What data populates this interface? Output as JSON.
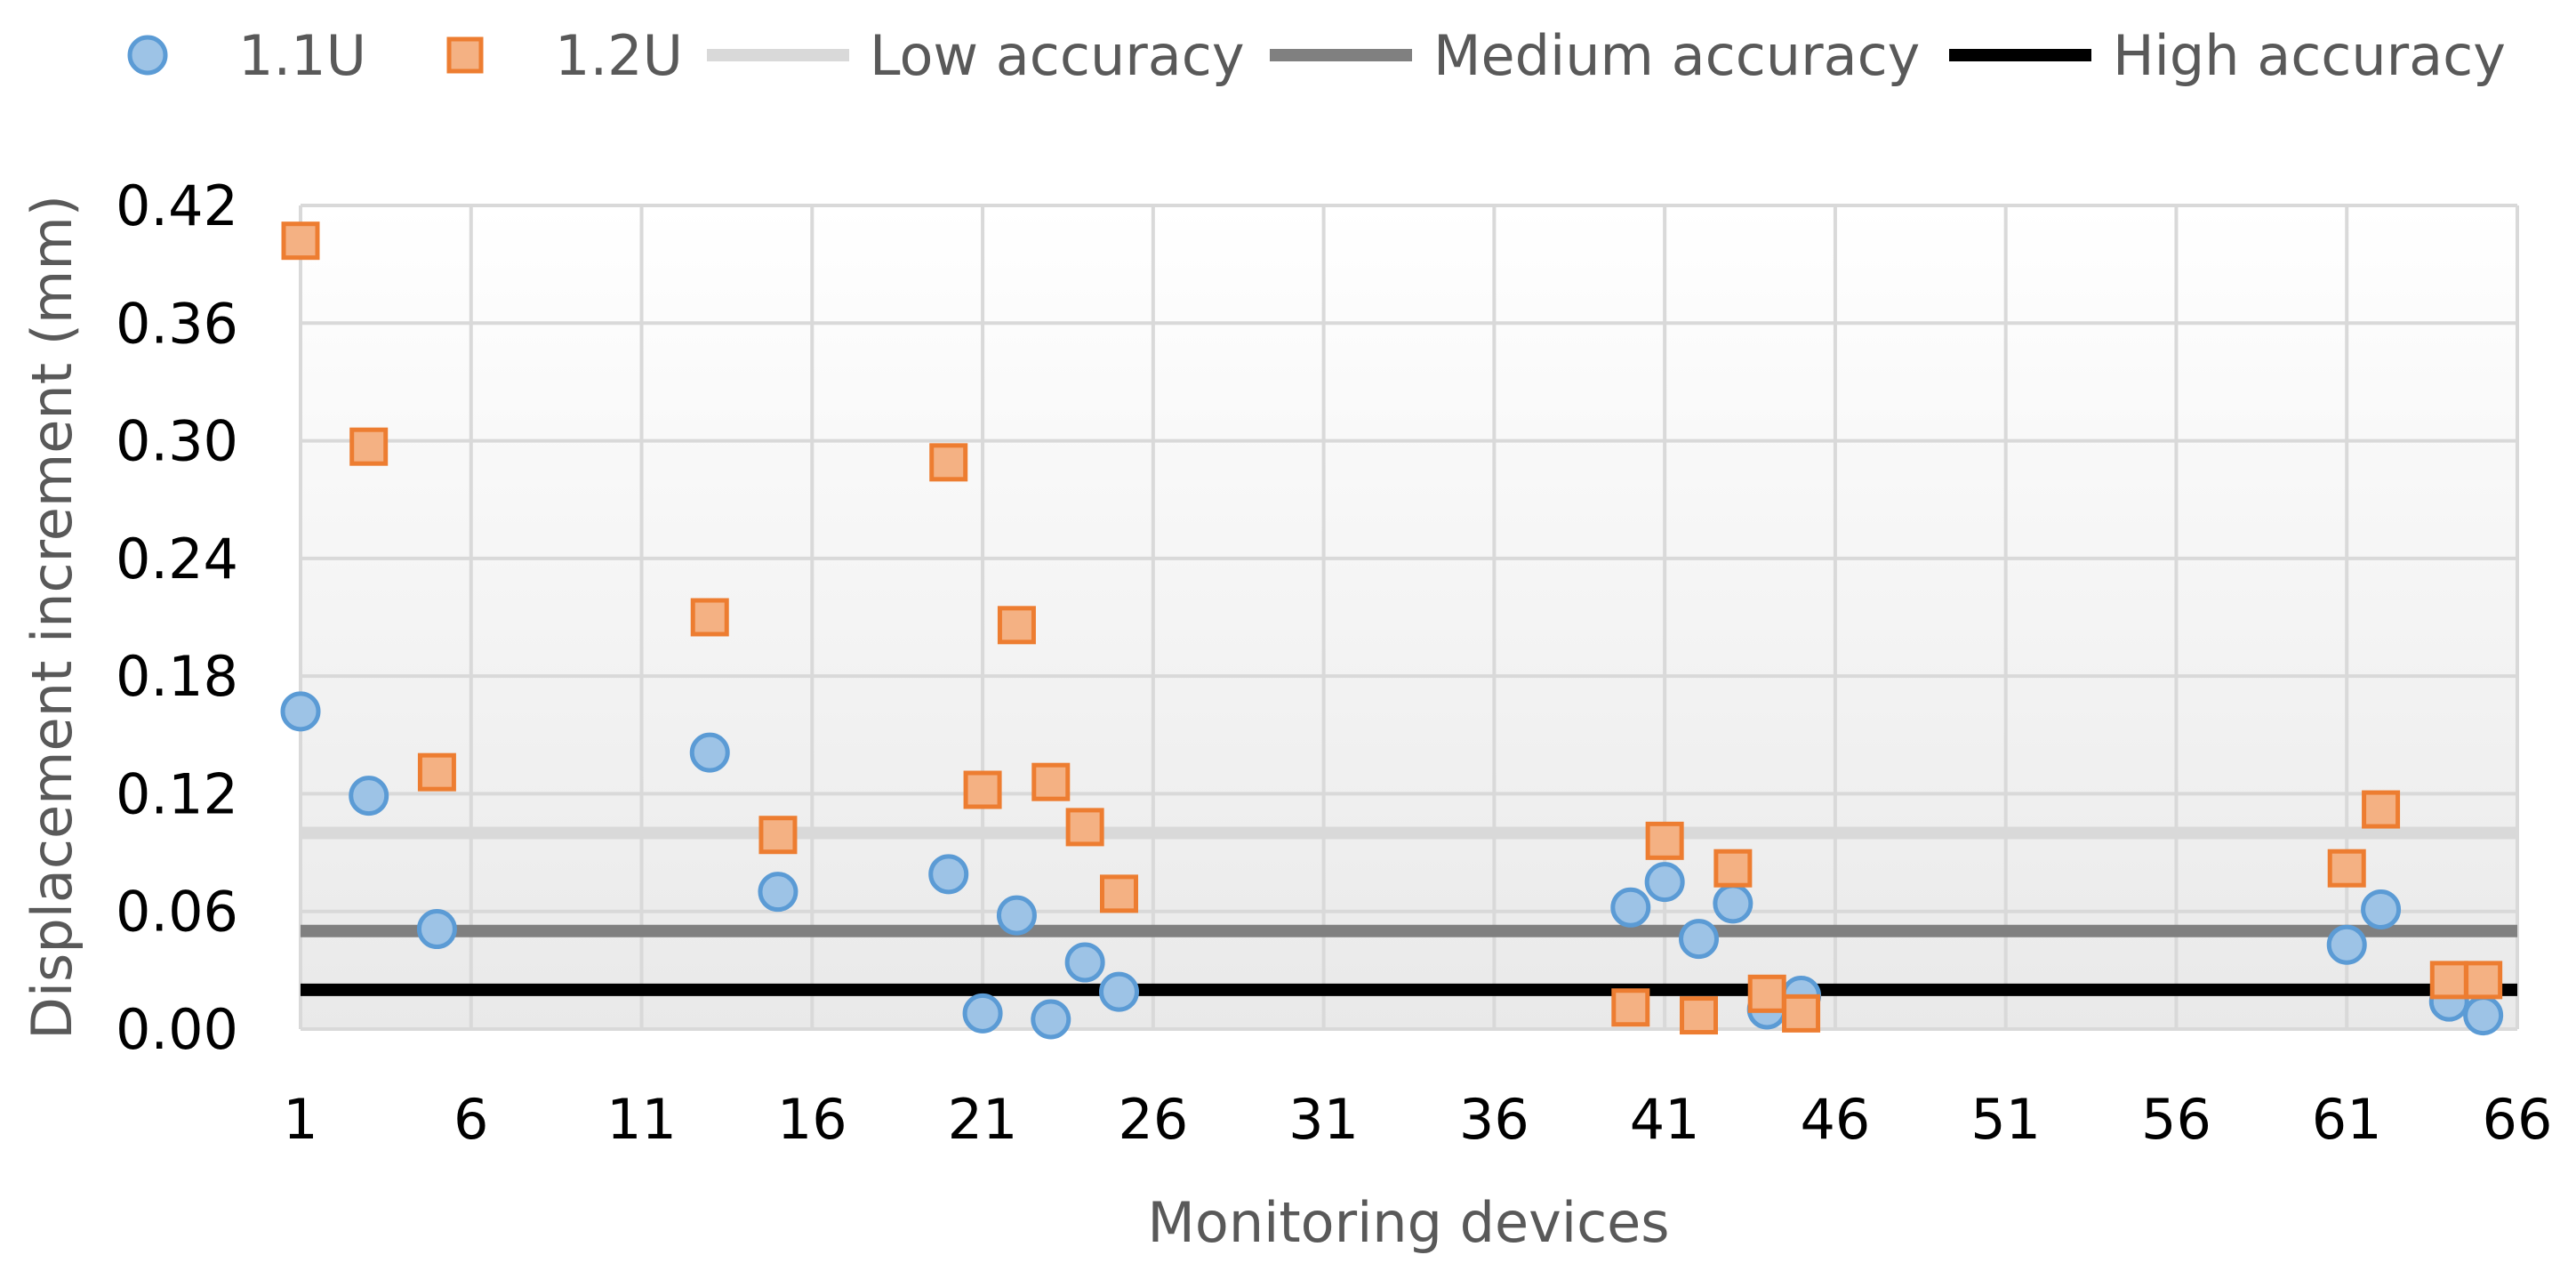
{
  "chart_data": {
    "type": "scatter",
    "title": "",
    "xlabel": "Monitoring devices",
    "ylabel": "Displacement increment (mm)",
    "xlim": [
      1,
      66
    ],
    "ylim": [
      0,
      0.42
    ],
    "xticks": [
      1,
      6,
      11,
      16,
      21,
      26,
      31,
      36,
      41,
      46,
      51,
      56,
      61,
      66
    ],
    "yticks": [
      0.0,
      0.06,
      0.12,
      0.18,
      0.24,
      0.3,
      0.36,
      0.42
    ],
    "ytick_labels": [
      "0.00",
      "0.06",
      "0.12",
      "0.18",
      "0.24",
      "0.30",
      "0.36",
      "0.42"
    ],
    "grid": true,
    "legend_position": "top",
    "series": [
      {
        "name": "1.1U",
        "marker": "circle",
        "color": "#9DC3E6",
        "stroke": "#5B9BD5",
        "points": [
          [
            1,
            0.162
          ],
          [
            3,
            0.119
          ],
          [
            5,
            0.051
          ],
          [
            13,
            0.141
          ],
          [
            15,
            0.07
          ],
          [
            20,
            0.079
          ],
          [
            21,
            0.008
          ],
          [
            22,
            0.058
          ],
          [
            23,
            0.005
          ],
          [
            24,
            0.034
          ],
          [
            25,
            0.019
          ],
          [
            40,
            0.062
          ],
          [
            41,
            0.075
          ],
          [
            42,
            0.046
          ],
          [
            43,
            0.064
          ],
          [
            44,
            0.01
          ],
          [
            45,
            0.017
          ],
          [
            61,
            0.043
          ],
          [
            62,
            0.061
          ],
          [
            64,
            0.014
          ],
          [
            65,
            0.007
          ]
        ]
      },
      {
        "name": "1.2U",
        "marker": "square",
        "color": "#F4B183",
        "stroke": "#ED7D31",
        "points": [
          [
            1,
            0.402
          ],
          [
            3,
            0.297
          ],
          [
            5,
            0.131
          ],
          [
            13,
            0.21
          ],
          [
            15,
            0.099
          ],
          [
            20,
            0.289
          ],
          [
            21,
            0.122
          ],
          [
            22,
            0.206
          ],
          [
            23,
            0.126
          ],
          [
            24,
            0.103
          ],
          [
            25,
            0.069
          ],
          [
            40,
            0.011
          ],
          [
            41,
            0.096
          ],
          [
            42,
            0.007
          ],
          [
            43,
            0.082
          ],
          [
            44,
            0.018
          ],
          [
            45,
            0.008
          ],
          [
            61,
            0.082
          ],
          [
            62,
            0.112
          ],
          [
            64,
            0.025
          ],
          [
            65,
            0.025
          ]
        ]
      }
    ],
    "reference_lines": [
      {
        "name": "Low accuracy",
        "value": 0.1,
        "color": "#D9D9D9"
      },
      {
        "name": "Medium accuracy",
        "value": 0.05,
        "color": "#808080"
      },
      {
        "name": "High accuracy",
        "value": 0.02,
        "color": "#000000"
      }
    ]
  }
}
